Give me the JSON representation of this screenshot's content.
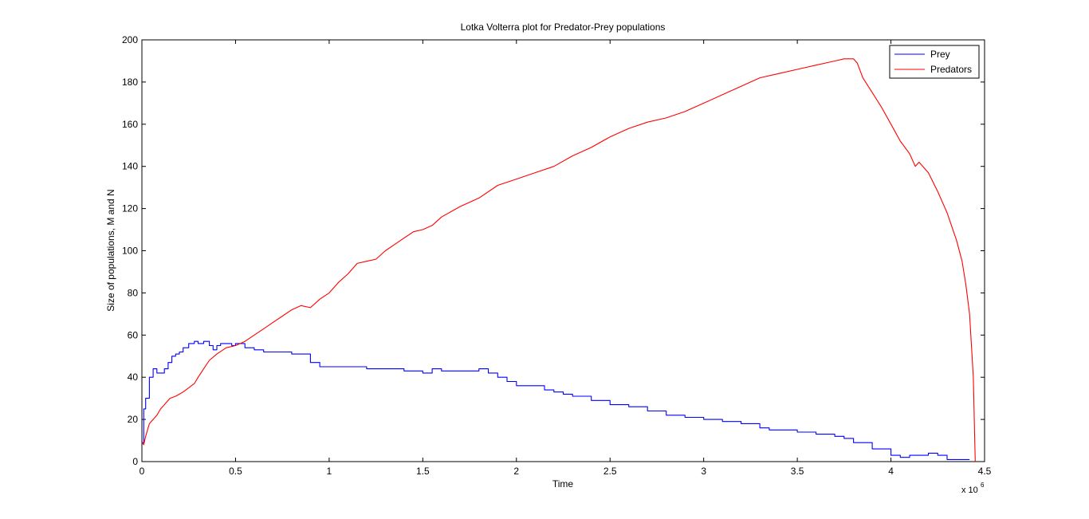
{
  "chart_data": {
    "type": "line",
    "title": "Lotka Volterra plot for Predator-Prey populations",
    "xlabel": "Time",
    "ylabel": "Size of populations, M and N",
    "x_multiplier_label": "x 10",
    "x_multiplier_exponent": "6",
    "xlim": [
      0,
      4.5
    ],
    "ylim": [
      0,
      200
    ],
    "x_ticks": [
      0,
      0.5,
      1,
      1.5,
      2,
      2.5,
      3,
      3.5,
      4,
      4.5
    ],
    "x_tick_labels": [
      "0",
      "0.5",
      "1",
      "1.5",
      "2",
      "2.5",
      "3",
      "3.5",
      "4",
      "4.5"
    ],
    "y_ticks": [
      0,
      20,
      40,
      60,
      80,
      100,
      120,
      140,
      160,
      180,
      200
    ],
    "y_tick_labels": [
      "0",
      "20",
      "40",
      "60",
      "80",
      "100",
      "120",
      "140",
      "160",
      "180",
      "200"
    ],
    "legend_position": "top-right",
    "series": [
      {
        "name": "Prey",
        "color": "#0000ff",
        "step": true,
        "x": [
          0,
          0.01,
          0.02,
          0.04,
          0.06,
          0.08,
          0.1,
          0.12,
          0.14,
          0.16,
          0.18,
          0.2,
          0.22,
          0.25,
          0.28,
          0.3,
          0.33,
          0.36,
          0.38,
          0.4,
          0.42,
          0.45,
          0.48,
          0.5,
          0.55,
          0.6,
          0.65,
          0.7,
          0.8,
          0.9,
          0.95,
          1.0,
          1.1,
          1.2,
          1.3,
          1.4,
          1.5,
          1.55,
          1.6,
          1.7,
          1.8,
          1.85,
          1.9,
          1.95,
          2.0,
          2.1,
          2.15,
          2.2,
          2.25,
          2.3,
          2.4,
          2.5,
          2.6,
          2.7,
          2.8,
          2.9,
          3.0,
          3.1,
          3.2,
          3.3,
          3.35,
          3.4,
          3.5,
          3.6,
          3.7,
          3.75,
          3.8,
          3.9,
          4.0,
          4.05,
          4.1,
          4.15,
          4.2,
          4.25,
          4.3,
          4.42
        ],
        "y": [
          9,
          25,
          30,
          40,
          44,
          42,
          42,
          44,
          47,
          50,
          51,
          52,
          54,
          56,
          57,
          56,
          57,
          55,
          53,
          55,
          56,
          56,
          55,
          56,
          54,
          53,
          52,
          52,
          51,
          47,
          45,
          45,
          45,
          44,
          44,
          43,
          42,
          44,
          43,
          43,
          44,
          42,
          40,
          38,
          36,
          36,
          34,
          33,
          32,
          31,
          29,
          27,
          26,
          24,
          22,
          21,
          20,
          19,
          18,
          16,
          15,
          15,
          14,
          13,
          12,
          11,
          9,
          6,
          3,
          2,
          3,
          3,
          4,
          3,
          1,
          1
        ]
      },
      {
        "name": "Predators",
        "color": "#ff0000",
        "step": false,
        "x": [
          0,
          0.01,
          0.02,
          0.04,
          0.06,
          0.08,
          0.1,
          0.12,
          0.15,
          0.18,
          0.2,
          0.22,
          0.25,
          0.28,
          0.3,
          0.33,
          0.36,
          0.4,
          0.45,
          0.5,
          0.55,
          0.6,
          0.65,
          0.7,
          0.75,
          0.8,
          0.85,
          0.9,
          0.95,
          1.0,
          1.05,
          1.1,
          1.15,
          1.2,
          1.25,
          1.3,
          1.35,
          1.4,
          1.45,
          1.5,
          1.55,
          1.6,
          1.7,
          1.8,
          1.9,
          2.0,
          2.1,
          2.2,
          2.3,
          2.4,
          2.5,
          2.6,
          2.7,
          2.8,
          2.9,
          3.0,
          3.1,
          3.2,
          3.3,
          3.4,
          3.5,
          3.6,
          3.65,
          3.7,
          3.75,
          3.8,
          3.82,
          3.85,
          3.9,
          3.95,
          4.0,
          4.05,
          4.1,
          4.13,
          4.15,
          4.2,
          4.25,
          4.3,
          4.35,
          4.38,
          4.4,
          4.42,
          4.44,
          4.45
        ],
        "y": [
          9,
          8,
          12,
          18,
          20,
          22,
          25,
          27,
          30,
          31,
          32,
          33,
          35,
          37,
          40,
          44,
          48,
          51,
          54,
          55,
          57,
          60,
          63,
          66,
          69,
          72,
          74,
          73,
          77,
          80,
          85,
          89,
          94,
          95,
          96,
          100,
          103,
          106,
          109,
          110,
          112,
          116,
          121,
          125,
          131,
          134,
          137,
          140,
          145,
          149,
          154,
          158,
          161,
          163,
          166,
          170,
          174,
          178,
          182,
          184,
          186,
          188,
          189,
          190,
          191,
          191,
          189,
          182,
          175,
          168,
          160,
          152,
          146,
          140,
          142,
          137,
          128,
          118,
          105,
          95,
          84,
          70,
          40,
          0
        ]
      }
    ]
  }
}
